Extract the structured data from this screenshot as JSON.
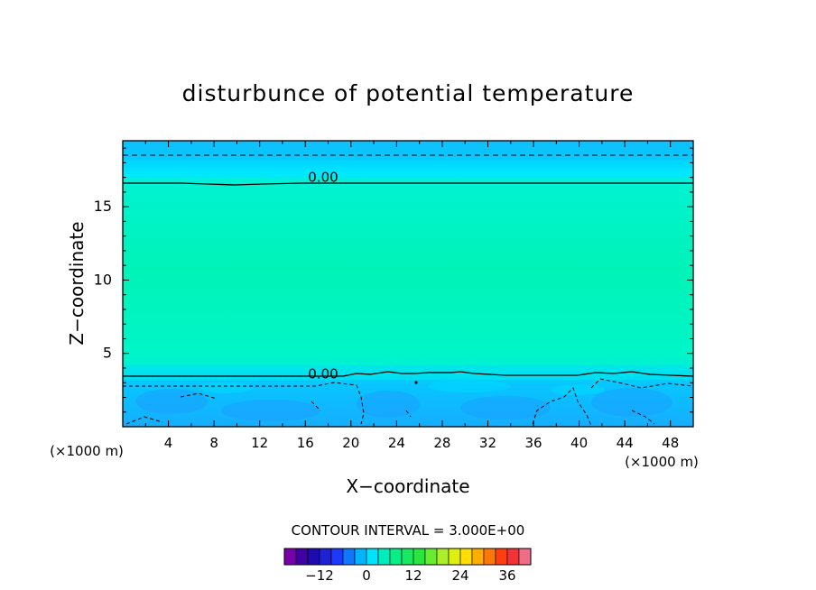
{
  "chart_data": {
    "type": "heatmap",
    "title": "disturbunce of potential temperature",
    "xlabel": "X−coordinate",
    "ylabel": "Z−coordinate",
    "x_unit": "(×1000 m)",
    "x_unit_right": "(×1000 m)",
    "xlim": [
      0,
      50
    ],
    "ylim": [
      0,
      19.5
    ],
    "x_ticks": [
      4,
      8,
      12,
      16,
      20,
      24,
      28,
      32,
      36,
      40,
      44,
      48
    ],
    "y_ticks": [
      5,
      10,
      15
    ],
    "contour_labels": [
      {
        "text": "0.00",
        "x": 17.5,
        "y": 17.0
      },
      {
        "text": "0.00",
        "x": 17.5,
        "y": 3.6
      }
    ],
    "contour_interval": "CONTOUR INTERVAL = 3.000E+00",
    "colorbar": {
      "min": -21,
      "max": 42,
      "step": 3,
      "ticks": [
        -12,
        0,
        12,
        24,
        36
      ],
      "tick_labels": [
        "−12",
        "0",
        "12",
        "24",
        "36"
      ]
    },
    "bands": [
      {
        "z0": 0,
        "z1": 3.2,
        "value": -4.5,
        "color": "#14b4ff"
      },
      {
        "z0": 3.2,
        "z1": 4.2,
        "value": -1.5,
        "color": "#00d7ff"
      },
      {
        "z0": 4.2,
        "z1": 17.0,
        "value": 0.5,
        "color": "#00f5c4"
      },
      {
        "z0": 17.0,
        "z1": 18.2,
        "value": -1.5,
        "color": "#00e6ff"
      },
      {
        "z0": 18.2,
        "z1": 19.5,
        "value": -4.5,
        "color": "#10bfff"
      }
    ]
  }
}
